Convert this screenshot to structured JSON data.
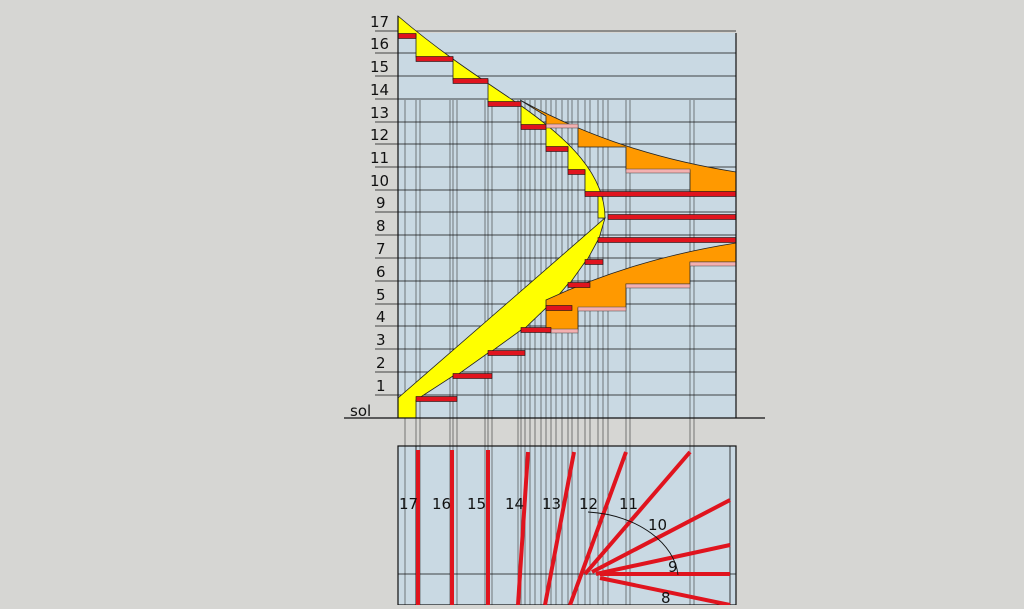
{
  "elevation": {
    "ground_label": "sol",
    "level_labels": [
      "1",
      "2",
      "3",
      "4",
      "5",
      "6",
      "7",
      "8",
      "9",
      "10",
      "11",
      "12",
      "13",
      "14",
      "15",
      "16",
      "17"
    ]
  },
  "plan": {
    "step_labels": [
      "17",
      "16",
      "15",
      "14",
      "13",
      "12",
      "11",
      "10",
      "9",
      "8"
    ]
  },
  "colors": {
    "background": "#d6d6d3",
    "wall": "#c9d9e3",
    "tread": "#e0141e",
    "riser_fill": "#ffff00",
    "upper_fill": "#ff9900",
    "outline": "#111111"
  }
}
